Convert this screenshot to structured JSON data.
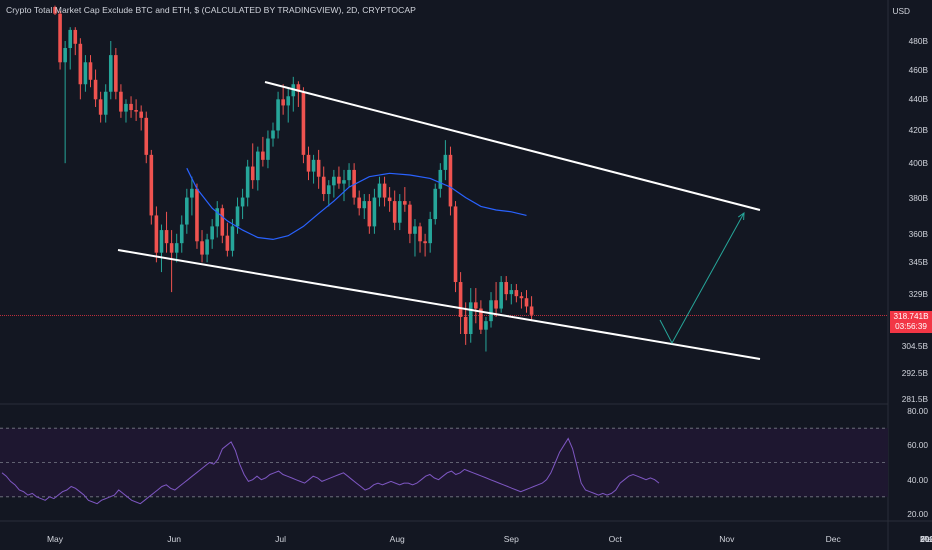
{
  "title": "Crypto Total Market Cap Exclude BTC and ETH, $ (CALCULATED BY TRADINGVIEW), 2D, CRYPTOCAP",
  "currency": "USD",
  "price_badge": {
    "price": "318.741B",
    "countdown": "03:56:39"
  },
  "colors": {
    "background": "#131722",
    "up": "#26a69a",
    "down": "#ef5350",
    "ma": "#2962ff",
    "rsi": "#7e57c2",
    "rsi_band": "#1e1730",
    "trendline": "#ffffff",
    "projection": "#26a69a",
    "price_line": "#f23645"
  },
  "chart_data": [
    {
      "type": "candlestick",
      "title": "Crypto Total Market Cap Exclude BTC and ETH, $ (CALCULATED BY TRADINGVIEW), 2D, CRYPTOCAP",
      "y_scale": "log",
      "ylim": [
        280,
        510
      ],
      "y_ticks": [
        "480B",
        "460B",
        "440B",
        "420B",
        "400B",
        "380B",
        "360B",
        "345B",
        "329B",
        "304.5B",
        "292.5B",
        "281.5B"
      ],
      "y_tick_values": [
        480,
        460,
        440,
        420,
        400,
        380,
        360,
        345,
        329,
        304.5,
        292.5,
        281.5
      ],
      "x_ticks": [
        "May",
        "Jun",
        "Jul",
        "Aug",
        "Sep",
        "Oct",
        "Nov",
        "Dec",
        "2023",
        "Feb",
        "Mar"
      ],
      "x_tick_index": [
        0,
        23.5,
        44.5,
        67.5,
        90,
        110.5,
        132.5,
        153.5,
        175.5,
        196.5,
        218
      ],
      "candles": [
        [
          0,
          505,
          506,
          499,
          500
        ],
        [
          1,
          500,
          502,
          460,
          465
        ],
        [
          2,
          465,
          480,
          400,
          475
        ],
        [
          3,
          475,
          490,
          460,
          488
        ],
        [
          4,
          488,
          490,
          470,
          478
        ],
        [
          5,
          478,
          482,
          440,
          450
        ],
        [
          6,
          450,
          470,
          445,
          465
        ],
        [
          7,
          465,
          470,
          448,
          453
        ],
        [
          8,
          453,
          460,
          435,
          440
        ],
        [
          9,
          440,
          445,
          425,
          430
        ],
        [
          10,
          430,
          450,
          425,
          445
        ],
        [
          11,
          445,
          480,
          440,
          470
        ],
        [
          12,
          470,
          475,
          440,
          445
        ],
        [
          13,
          445,
          450,
          428,
          432
        ],
        [
          14,
          432,
          440,
          425,
          437
        ],
        [
          15,
          437,
          442,
          428,
          433
        ],
        [
          16,
          433,
          440,
          426,
          432
        ],
        [
          17,
          432,
          436,
          420,
          428
        ],
        [
          18,
          428,
          432,
          400,
          405
        ],
        [
          19,
          405,
          408,
          365,
          370
        ],
        [
          20,
          370,
          375,
          345,
          350
        ],
        [
          21,
          350,
          365,
          340,
          362
        ],
        [
          22,
          362,
          372,
          350,
          355
        ],
        [
          23,
          355,
          362,
          330,
          350
        ],
        [
          24,
          350,
          360,
          345,
          355
        ],
        [
          25,
          355,
          370,
          350,
          365
        ],
        [
          26,
          365,
          385,
          360,
          380
        ],
        [
          27,
          380,
          392,
          370,
          385
        ],
        [
          28,
          385,
          388,
          352,
          356
        ],
        [
          29,
          356,
          362,
          345,
          349
        ],
        [
          30,
          349,
          360,
          345,
          357
        ],
        [
          31,
          357,
          368,
          352,
          364
        ],
        [
          32,
          364,
          378,
          358,
          374
        ],
        [
          33,
          374,
          376,
          355,
          359
        ],
        [
          34,
          359,
          366,
          348,
          351
        ],
        [
          35,
          351,
          368,
          348,
          364
        ],
        [
          36,
          364,
          380,
          360,
          375
        ],
        [
          37,
          375,
          385,
          368,
          380
        ],
        [
          38,
          380,
          402,
          375,
          398
        ],
        [
          39,
          398,
          412,
          385,
          390
        ],
        [
          40,
          390,
          410,
          384,
          407
        ],
        [
          41,
          407,
          416,
          398,
          402
        ],
        [
          42,
          402,
          420,
          397,
          415
        ],
        [
          43,
          415,
          425,
          410,
          420
        ],
        [
          44,
          420,
          445,
          415,
          440
        ],
        [
          45,
          440,
          450,
          430,
          436
        ],
        [
          46,
          436,
          448,
          425,
          442
        ],
        [
          47,
          442,
          455,
          432,
          450
        ],
        [
          48,
          450,
          452,
          435,
          445
        ],
        [
          49,
          445,
          448,
          400,
          405
        ],
        [
          50,
          405,
          410,
          390,
          395
        ],
        [
          51,
          395,
          405,
          388,
          402
        ],
        [
          52,
          402,
          408,
          385,
          392
        ],
        [
          53,
          392,
          398,
          378,
          382
        ],
        [
          54,
          382,
          390,
          375,
          387
        ],
        [
          55,
          387,
          396,
          380,
          392
        ],
        [
          56,
          392,
          398,
          385,
          388
        ],
        [
          57,
          388,
          396,
          378,
          390
        ],
        [
          58,
          390,
          400,
          386,
          396
        ],
        [
          59,
          396,
          400,
          376,
          380
        ],
        [
          60,
          380,
          384,
          370,
          374
        ],
        [
          61,
          374,
          382,
          368,
          378
        ],
        [
          62,
          378,
          382,
          360,
          364
        ],
        [
          63,
          364,
          385,
          360,
          380
        ],
        [
          64,
          380,
          392,
          375,
          388
        ],
        [
          65,
          388,
          392,
          375,
          380
        ],
        [
          66,
          380,
          386,
          372,
          378
        ],
        [
          67,
          378,
          384,
          362,
          366
        ],
        [
          68,
          366,
          382,
          362,
          378
        ],
        [
          69,
          378,
          386,
          372,
          376
        ],
        [
          70,
          376,
          378,
          355,
          360
        ],
        [
          71,
          360,
          368,
          348,
          364
        ],
        [
          72,
          364,
          366,
          350,
          356
        ],
        [
          73,
          356,
          360,
          348,
          355
        ],
        [
          74,
          355,
          372,
          350,
          368
        ],
        [
          75,
          368,
          388,
          365,
          385
        ],
        [
          76,
          385,
          400,
          380,
          396
        ],
        [
          77,
          396,
          414,
          390,
          405
        ],
        [
          78,
          405,
          410,
          370,
          375
        ],
        [
          79,
          375,
          378,
          330,
          335
        ],
        [
          80,
          335,
          340,
          310,
          318
        ],
        [
          81,
          318,
          325,
          305,
          310
        ],
        [
          82,
          310,
          332,
          306,
          325
        ],
        [
          83,
          325,
          332,
          315,
          322
        ],
        [
          84,
          322,
          326,
          310,
          312
        ],
        [
          85,
          312,
          318,
          302,
          316
        ],
        [
          86,
          316,
          330,
          313,
          326
        ],
        [
          87,
          326,
          335,
          318,
          322
        ],
        [
          88,
          322,
          338,
          320,
          335
        ],
        [
          89,
          335,
          338,
          326,
          329
        ],
        [
          90,
          329,
          334,
          324,
          331
        ],
        [
          91,
          331,
          334,
          325,
          328
        ],
        [
          92,
          328,
          330,
          322,
          327
        ],
        [
          93,
          327,
          331,
          320,
          323
        ],
        [
          94,
          323,
          328,
          316,
          319
        ]
      ],
      "ma": [
        [
          26,
          397
        ],
        [
          28,
          385
        ],
        [
          31,
          374
        ],
        [
          34,
          367
        ],
        [
          37,
          362
        ],
        [
          40,
          358
        ],
        [
          43,
          357
        ],
        [
          46,
          359
        ],
        [
          49,
          364
        ],
        [
          52,
          371
        ],
        [
          55,
          378
        ],
        [
          58,
          386
        ],
        [
          62,
          392
        ],
        [
          66,
          394
        ],
        [
          70,
          393
        ],
        [
          74,
          391
        ],
        [
          78,
          386
        ],
        [
          81,
          380
        ],
        [
          84,
          375
        ],
        [
          87,
          373
        ],
        [
          90,
          372
        ],
        [
          93,
          370
        ]
      ],
      "channel_upper": [
        [
          265,
          82
        ],
        [
          760,
          210
        ]
      ],
      "channel_lower": [
        [
          118,
          250
        ],
        [
          760,
          359
        ]
      ],
      "projection": [
        [
          660,
          320
        ],
        [
          672,
          343
        ],
        [
          744,
          213
        ]
      ],
      "current_price": 318.741
    },
    {
      "type": "line",
      "title": "RSI",
      "ylim": [
        16,
        82
      ],
      "y_ticks": [
        "80.00",
        "60.00",
        "40.00",
        "20.00"
      ],
      "y_tick_values": [
        80,
        60,
        40,
        20
      ],
      "band": [
        30,
        70
      ],
      "midline": 50,
      "values": [
        44,
        42,
        39,
        37,
        34,
        33,
        31,
        32,
        30,
        29,
        28,
        30,
        29,
        31,
        33,
        34,
        36,
        35,
        33,
        31,
        28,
        27,
        26,
        28,
        29,
        30,
        31,
        34,
        32,
        30,
        28,
        27,
        26,
        28,
        30,
        32,
        34,
        36,
        37,
        35,
        34,
        36,
        38,
        40,
        42,
        44,
        46,
        48,
        50,
        49,
        52,
        58,
        60,
        62,
        57,
        49,
        43,
        39,
        40,
        42,
        40,
        41,
        43,
        44,
        45,
        43,
        42,
        41,
        40,
        39,
        38,
        40,
        42,
        41,
        39,
        40,
        41,
        42,
        43,
        44,
        42,
        40,
        38,
        36,
        34,
        35,
        37,
        38,
        37,
        38,
        39,
        38,
        37,
        38,
        38,
        37,
        38,
        40,
        42,
        43,
        41,
        40,
        42,
        44,
        45,
        43,
        44,
        46,
        45,
        44,
        43,
        42,
        41,
        40,
        39,
        38,
        37,
        36,
        35,
        34,
        33,
        34,
        35,
        36,
        37,
        38,
        40,
        44,
        50,
        56,
        60,
        64,
        58,
        48,
        38,
        34,
        33,
        32,
        31,
        32,
        31,
        32,
        34,
        38,
        40,
        42,
        43,
        42,
        41,
        40,
        41,
        40,
        38
      ]
    }
  ]
}
